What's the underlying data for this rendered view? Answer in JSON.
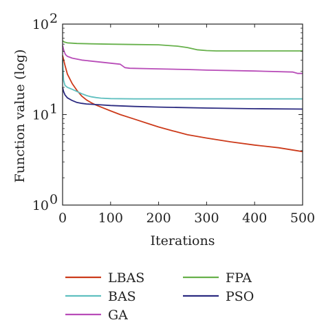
{
  "chart_data": {
    "type": "line",
    "title": "",
    "xlabel": "Iterations",
    "ylabel": "Function value (log)",
    "xlim": [
      0,
      500
    ],
    "ylim": [
      1,
      100
    ],
    "yscale": "log",
    "xticks": [
      0,
      100,
      200,
      300,
      400,
      500
    ],
    "xtick_labels": [
      "0",
      "100",
      "200",
      "300",
      "400",
      "500"
    ],
    "yticks": [
      1,
      10,
      100
    ],
    "ytick_labels": [
      {
        "base": "10",
        "exp": "0"
      },
      {
        "base": "10",
        "exp": "1"
      },
      {
        "base": "10",
        "exp": "2"
      }
    ],
    "grid": false,
    "legend_position": "bottom",
    "series": [
      {
        "name": "LBAS",
        "color": "#cc3a1a",
        "x": [
          0,
          5,
          10,
          20,
          30,
          40,
          50,
          60,
          70,
          80,
          100,
          120,
          150,
          180,
          200,
          230,
          260,
          300,
          350,
          400,
          450,
          500
        ],
        "y": [
          45,
          35,
          28,
          22,
          18.5,
          16,
          14.5,
          13.5,
          12.7,
          12.1,
          11.0,
          10.0,
          8.9,
          7.9,
          7.3,
          6.6,
          6.0,
          5.5,
          5.0,
          4.6,
          4.3,
          3.9
        ]
      },
      {
        "name": "BAS",
        "color": "#5ebfbf",
        "x": [
          0,
          2,
          5,
          10,
          20,
          30,
          40,
          50,
          60,
          70,
          80,
          100,
          150,
          200,
          300,
          400,
          500
        ],
        "y": [
          40,
          24,
          21,
          20,
          19.0,
          18.0,
          17.0,
          16.2,
          15.7,
          15.4,
          15.2,
          15.0,
          14.9,
          14.9,
          14.9,
          14.9,
          14.9
        ]
      },
      {
        "name": "GA",
        "color": "#b84cb8",
        "x": [
          0,
          3,
          6,
          10,
          20,
          40,
          60,
          80,
          100,
          120,
          130,
          140,
          200,
          260,
          300,
          400,
          480,
          490,
          500
        ],
        "y": [
          58,
          50,
          46,
          44,
          42,
          40,
          39,
          38,
          37,
          36,
          33,
          32.5,
          32,
          31.5,
          31,
          30.3,
          29.5,
          28.5,
          28.5
        ]
      },
      {
        "name": "FPA",
        "color": "#66b04a",
        "x": [
          0,
          5,
          10,
          30,
          60,
          100,
          150,
          200,
          240,
          260,
          280,
          300,
          320,
          400,
          500
        ],
        "y": [
          65,
          63,
          62,
          61,
          60.5,
          60,
          59.5,
          59,
          57,
          55,
          52,
          51,
          50.5,
          50.5,
          50.5
        ]
      },
      {
        "name": "PSO",
        "color": "#2b2a80",
        "x": [
          0,
          2,
          5,
          10,
          20,
          30,
          40,
          50,
          60,
          70,
          80,
          100,
          150,
          200,
          300,
          400,
          500
        ],
        "y": [
          20,
          18,
          16.5,
          15.3,
          14.3,
          13.6,
          13.3,
          13.1,
          13.0,
          12.9,
          12.8,
          12.6,
          12.3,
          12.1,
          11.8,
          11.6,
          11.5
        ]
      }
    ]
  }
}
